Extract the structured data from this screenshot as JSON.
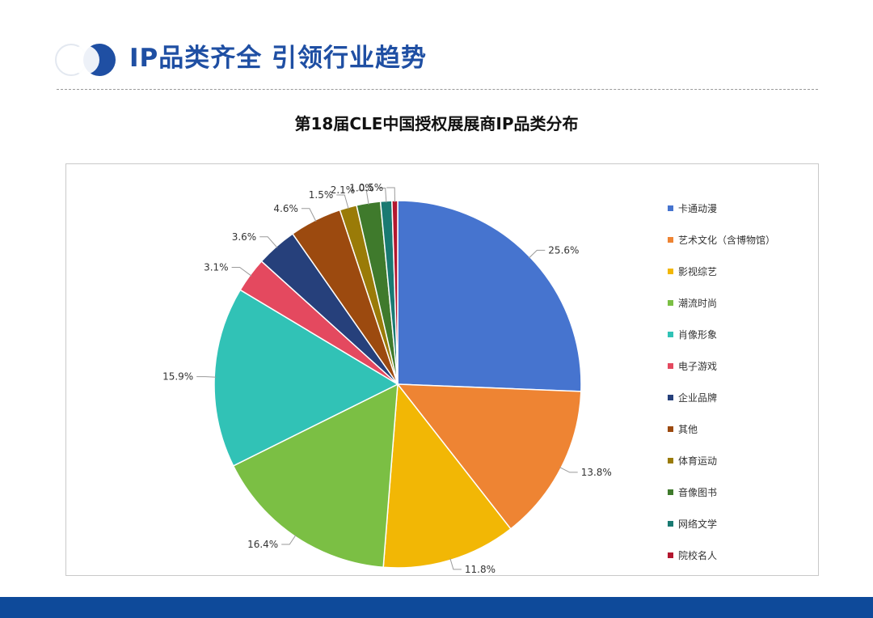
{
  "header": {
    "title": "IP品类齐全 引领行业趋势"
  },
  "theme": {
    "accent": "#1f4fa3",
    "footer": "#0e4a9a"
  },
  "chart_data": {
    "type": "pie",
    "title": "第18届CLE中国授权展展商IP品类分布",
    "legend_position": "right",
    "start_angle": "top, clockwise",
    "slices": [
      {
        "label": "卡通动漫",
        "value": 25.6,
        "value_label": "25.6%",
        "color": "#4674cf"
      },
      {
        "label": "艺术文化（含博物馆）",
        "value": 13.8,
        "value_label": "13.8%",
        "color": "#ee8433"
      },
      {
        "label": "影视综艺",
        "value": 11.8,
        "value_label": "11.8%",
        "color": "#f2b705"
      },
      {
        "label": "潮流时尚",
        "value": 16.4,
        "value_label": "16.4%",
        "color": "#7bbf44"
      },
      {
        "label": "肖像形象",
        "value": 15.9,
        "value_label": "15.9%",
        "color": "#31c2b6"
      },
      {
        "label": "电子游戏",
        "value": 3.1,
        "value_label": "3.1%",
        "color": "#e4495f"
      },
      {
        "label": "企业品牌",
        "value": 3.6,
        "value_label": "3.6%",
        "color": "#26407b"
      },
      {
        "label": "其他",
        "value": 4.6,
        "value_label": "4.6%",
        "color": "#9c4a0f"
      },
      {
        "label": "体育运动",
        "value": 1.5,
        "value_label": "1.5%",
        "color": "#9a7b08"
      },
      {
        "label": "音像图书",
        "value": 2.1,
        "value_label": "2.1%",
        "color": "#3f7a2c"
      },
      {
        "label": "网络文学",
        "value": 1.0,
        "value_label": "1.0%",
        "color": "#197a72"
      },
      {
        "label": "院校名人",
        "value": 0.5,
        "value_label": "0.5%",
        "color": "#b3172f"
      }
    ]
  }
}
